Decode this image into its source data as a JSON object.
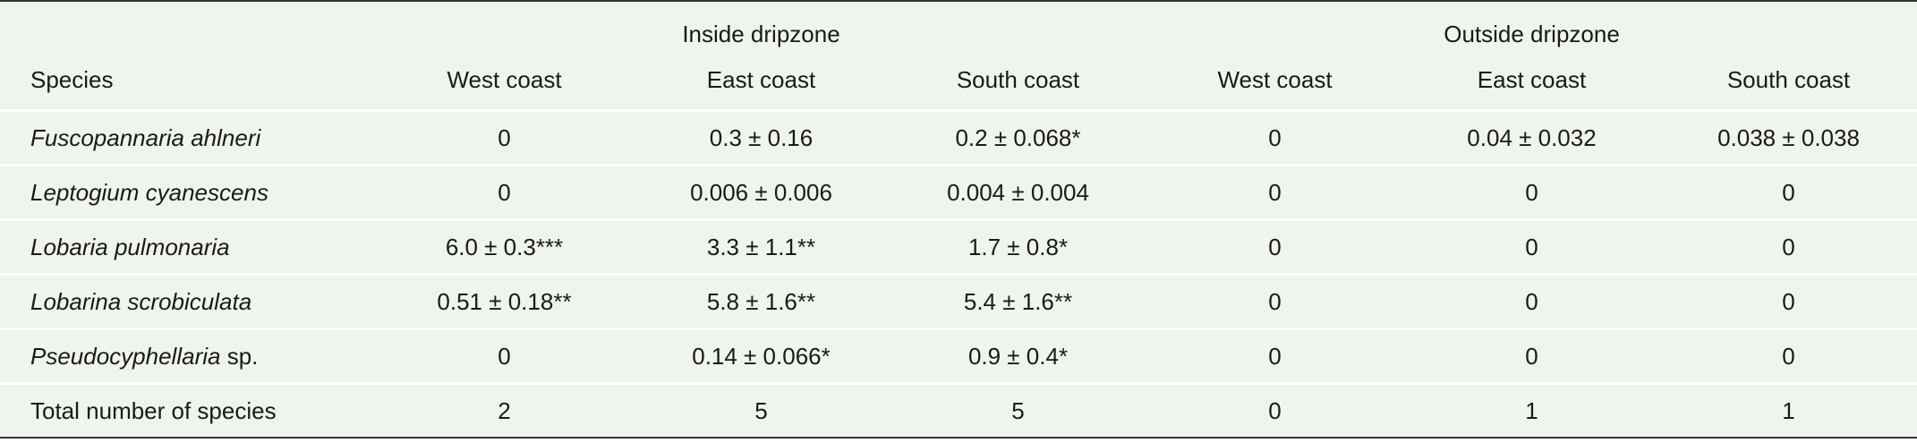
{
  "table": {
    "groups": [
      "Inside dripzone",
      "Outside dripzone"
    ],
    "columns": [
      "Species",
      "West coast",
      "East coast",
      "South coast",
      "West coast",
      "East coast",
      "South coast"
    ],
    "rows": [
      {
        "species": "Fuscopannaria ahlneri",
        "values": [
          "0",
          "0.3 ± 0.16",
          "0.2 ± 0.068*",
          "0",
          "0.04 ± 0.032",
          "0.038 ± 0.038"
        ]
      },
      {
        "species": "Leptogium cyanescens",
        "values": [
          "0",
          "0.006 ± 0.006",
          "0.004 ± 0.004",
          "0",
          "0",
          "0"
        ]
      },
      {
        "species": "Lobaria pulmonaria",
        "values": [
          "6.0 ± 0.3***",
          "3.3 ± 1.1**",
          "1.7 ± 0.8*",
          "0",
          "0",
          "0"
        ]
      },
      {
        "species": "Lobarina scrobiculata",
        "values": [
          "0.51 ± 0.18**",
          "5.8 ± 1.6**",
          "5.4 ± 1.6**",
          "0",
          "0",
          "0"
        ]
      },
      {
        "species": "Pseudocyphellaria",
        "suffix": "sp.",
        "values": [
          "0",
          "0.14 ± 0.066*",
          "0.9 ± 0.4*",
          "0",
          "0",
          "0"
        ]
      },
      {
        "label": "Total number of species",
        "values": [
          "2",
          "5",
          "5",
          "0",
          "1",
          "1"
        ]
      }
    ]
  }
}
